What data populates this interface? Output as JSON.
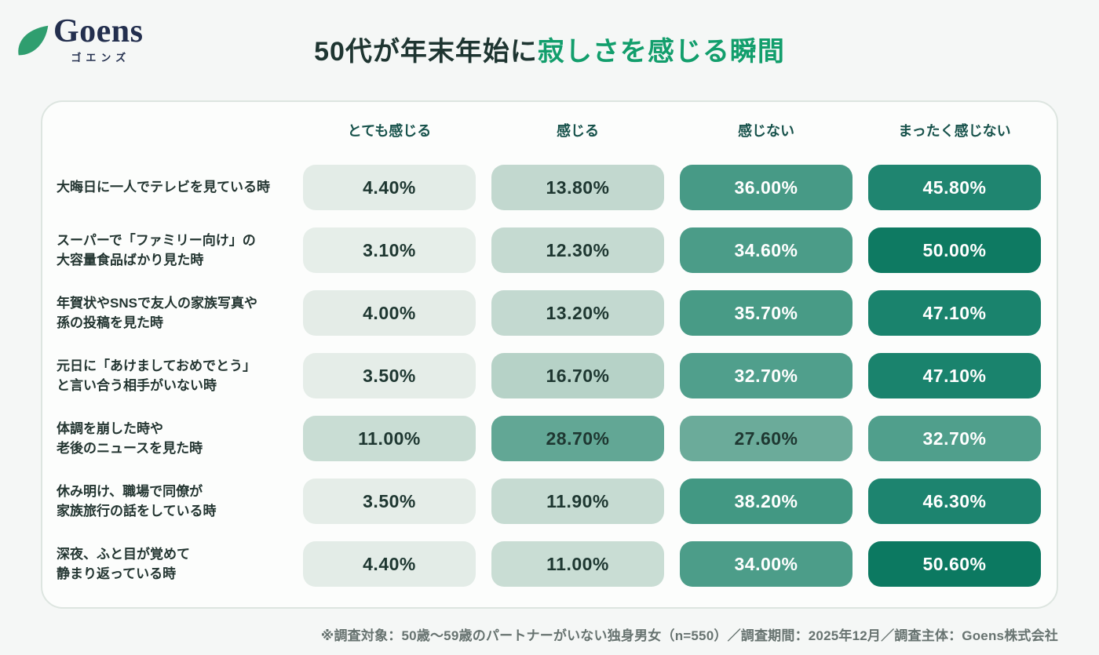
{
  "header": {
    "logo_name": "Goens",
    "logo_subtitle": "ゴエンズ",
    "leaf_color": "#2f9e6f",
    "logo_text_color": "#232f4e",
    "title_dark": "50代が年末年始に",
    "title_green": "寂しさを感じる瞬間",
    "title_green_color": "#129e6c",
    "title_dark_color": "#1e3531"
  },
  "chart_data": {
    "type": "heatmap",
    "title": "50代が年末年始に寂しさを感じる瞬間",
    "columns": [
      "とても感じる",
      "感じる",
      "感じない",
      "まったく感じない"
    ],
    "rows": [
      {
        "label_lines": [
          "大晦日に一人でテレビを見ている時"
        ],
        "values": [
          4.4,
          13.8,
          36.0,
          45.8
        ],
        "colors": [
          "#e3ece7",
          "#c2d8cf",
          "#479a86",
          "#1f8570"
        ]
      },
      {
        "label_lines": [
          "スーパーで「ファミリー向け」の",
          "大容量食品ばかり見た時"
        ],
        "values": [
          3.1,
          12.3,
          34.6,
          50.0
        ],
        "colors": [
          "#e6eee9",
          "#c5dad1",
          "#4b9c88",
          "#0e7a62"
        ]
      },
      {
        "label_lines": [
          "年賀状やSNSで友人の家族写真や",
          "孫の投稿を見た時"
        ],
        "values": [
          4.0,
          13.2,
          35.7,
          47.1
        ],
        "colors": [
          "#e4ece7",
          "#c3d9d0",
          "#489b86",
          "#1a836d"
        ]
      },
      {
        "label_lines": [
          "元日に「あけましておめでとう」",
          "と言い合う相手がいない時"
        ],
        "values": [
          3.5,
          16.7,
          32.7,
          47.1
        ],
        "colors": [
          "#e5ede8",
          "#b6d2c7",
          "#509f8c",
          "#1a836d"
        ]
      },
      {
        "label_lines": [
          "体調を崩した時や",
          "老後のニュースを見た時"
        ],
        "values": [
          11.0,
          28.7,
          27.6,
          32.7
        ],
        "colors": [
          "#c9ddd4",
          "#62a795",
          "#6bab9a",
          "#509f8c"
        ]
      },
      {
        "label_lines": [
          "休み明け、職場で同僚が",
          "家族旅行の話をしている時"
        ],
        "values": [
          3.5,
          11.9,
          38.2,
          46.3
        ],
        "colors": [
          "#e5ede8",
          "#c6dbd2",
          "#429883",
          "#1d846f"
        ]
      },
      {
        "label_lines": [
          "深夜、ふと目が覚めて",
          "静まり返っている時"
        ],
        "values": [
          4.4,
          11.0,
          34.0,
          50.6
        ],
        "colors": [
          "#e3ece7",
          "#c9ddd4",
          "#4c9d89",
          "#0c7961"
        ]
      }
    ],
    "value_suffix": "%",
    "value_decimals": 2,
    "light_text_threshold": 30,
    "cell_text_dark": "#1e3731",
    "cell_text_light": "#ffffff",
    "legend_position": "top",
    "xlabel": "",
    "ylabel": ""
  },
  "footer": {
    "note": "※調査対象：50歳〜59歳のパートナーがいない独身男女（n=550）／調査期間：2025年12月／調査主体：Goens株式会社"
  }
}
